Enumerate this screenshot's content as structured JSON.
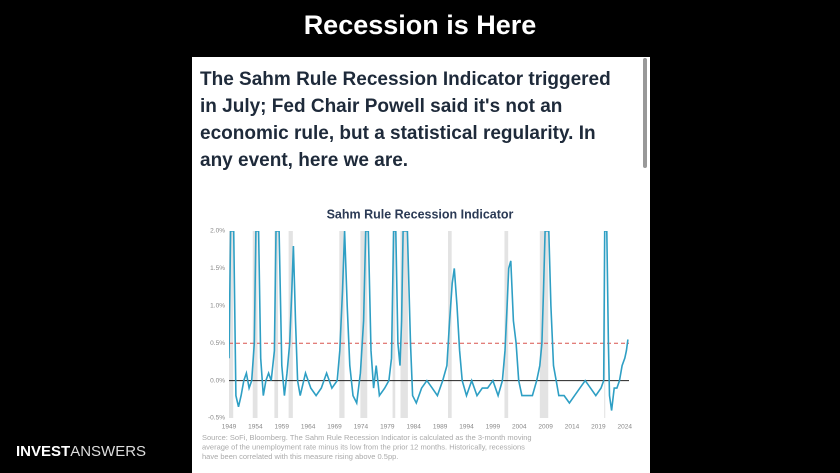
{
  "slide_title": "Recession is Here",
  "headline_lines": [
    "The Sahm Rule Recession Indicator triggered",
    "in July; Fed Chair Powell said it's not an",
    "economic rule, but a statistical regularity. In",
    "any event, here we are."
  ],
  "source_lines": [
    "Source: SoFi, Bloomberg. The Sahm Rule Recession Indicator is calculated as the 3-month moving",
    "average of the unemployment rate minus its low from the prior 12 months. Historically, recessions",
    "have been correlated with this measure rising above 0.5pp."
  ],
  "brand": {
    "bold": "INVEST",
    "light": "ANSWERS"
  },
  "chart_data": {
    "type": "line",
    "title": "Sahm Rule Recession Indicator",
    "x": [
      1949.0,
      1949.3,
      1949.9,
      1950.3,
      1950.8,
      1951.3,
      1951.8,
      1952.3,
      1952.8,
      1953.3,
      1953.8,
      1954.1,
      1954.6,
      1955.0,
      1955.5,
      1956.0,
      1956.5,
      1957.0,
      1957.6,
      1957.9,
      1958.5,
      1959.0,
      1959.5,
      1960.0,
      1960.5,
      1960.9,
      1961.2,
      1961.6,
      1962.0,
      1962.5,
      1963.5,
      1964.5,
      1965.5,
      1966.5,
      1967.5,
      1968.5,
      1969.5,
      1970.0,
      1970.5,
      1970.9,
      1971.4,
      1971.9,
      1972.5,
      1973.2,
      1973.9,
      1974.5,
      1974.9,
      1975.4,
      1975.9,
      1976.4,
      1976.9,
      1977.5,
      1978.5,
      1979.3,
      1979.8,
      1980.2,
      1980.6,
      1981.0,
      1981.4,
      1981.7,
      1982.0,
      1982.8,
      1983.4,
      1983.8,
      1984.5,
      1985.5,
      1986.5,
      1987.5,
      1988.5,
      1989.5,
      1990.3,
      1990.8,
      1991.3,
      1991.7,
      1992.2,
      1992.7,
      1993.2,
      1994.0,
      1995.0,
      1996.0,
      1997.0,
      1998.0,
      1999.0,
      2000.0,
      2000.8,
      2001.3,
      2001.7,
      2002.0,
      2002.4,
      2002.9,
      2003.4,
      2003.9,
      2004.5,
      2005.5,
      2006.5,
      2007.3,
      2007.9,
      2008.3,
      2008.6,
      2008.9,
      2009.6,
      2010.0,
      2010.5,
      2011.0,
      2011.5,
      2012.5,
      2013.5,
      2014.5,
      2015.5,
      2016.5,
      2017.5,
      2018.5,
      2019.5,
      2020.0,
      2020.2,
      2020.6,
      2020.9,
      2021.1,
      2021.5,
      2022.0,
      2022.5,
      2023.0,
      2023.5,
      2024.0,
      2024.3,
      2024.6
    ],
    "series": [
      {
        "name": "Sahm Rule Recession Indicator",
        "color": "#2e9fc4",
        "values": [
          0.3,
          2.0,
          2.0,
          -0.2,
          -0.35,
          -0.2,
          0.0,
          0.1,
          -0.1,
          0.0,
          0.5,
          2.0,
          2.0,
          0.3,
          -0.2,
          0.0,
          0.1,
          0.0,
          0.4,
          2.0,
          2.0,
          0.2,
          -0.2,
          0.1,
          0.5,
          1.2,
          1.8,
          0.8,
          0.0,
          -0.2,
          0.1,
          -0.1,
          -0.2,
          -0.1,
          0.1,
          -0.1,
          0.0,
          0.4,
          1.2,
          2.0,
          1.0,
          0.2,
          -0.2,
          -0.3,
          0.1,
          0.8,
          2.0,
          2.0,
          0.4,
          -0.1,
          0.2,
          -0.2,
          -0.1,
          0.0,
          0.3,
          2.0,
          2.0,
          0.5,
          0.2,
          0.8,
          2.0,
          2.0,
          0.5,
          -0.2,
          -0.3,
          -0.1,
          0.0,
          -0.1,
          -0.2,
          0.0,
          0.2,
          0.8,
          1.3,
          1.5,
          1.0,
          0.4,
          0.0,
          -0.2,
          0.0,
          -0.2,
          -0.1,
          -0.1,
          0.0,
          -0.2,
          0.0,
          0.4,
          1.0,
          1.5,
          1.6,
          0.8,
          0.5,
          0.0,
          -0.2,
          -0.2,
          -0.2,
          0.0,
          0.2,
          0.5,
          1.2,
          2.0,
          2.0,
          1.0,
          0.2,
          0.0,
          -0.2,
          -0.2,
          -0.3,
          -0.2,
          -0.1,
          0.0,
          -0.1,
          -0.2,
          -0.1,
          0.0,
          2.0,
          2.0,
          0.5,
          -0.2,
          -0.4,
          -0.1,
          -0.1,
          0.0,
          0.2,
          0.3,
          0.4,
          0.55
        ]
      }
    ],
    "recessions": [
      [
        1948.9,
        1949.8
      ],
      [
        1953.5,
        1954.4
      ],
      [
        1957.6,
        1958.3
      ],
      [
        1960.3,
        1961.1
      ],
      [
        1969.9,
        1970.9
      ],
      [
        1973.9,
        1975.2
      ],
      [
        1980.0,
        1980.5
      ],
      [
        1981.5,
        1982.9
      ],
      [
        1990.5,
        1991.2
      ],
      [
        2001.2,
        2001.9
      ],
      [
        2007.9,
        2009.5
      ],
      [
        2020.1,
        2020.3
      ]
    ],
    "recession_color": "#e3e3e3",
    "threshold": 0.5,
    "threshold_color": "#d9534f",
    "xlim": [
      1949,
      2024.8
    ],
    "ylim": [
      -0.5,
      2.0
    ],
    "xticks": [
      1949,
      1954,
      1959,
      1964,
      1969,
      1974,
      1979,
      1984,
      1989,
      1994,
      1999,
      2004,
      2009,
      2014,
      2019,
      2024
    ],
    "yticks": [
      {
        "value": -0.5,
        "label": "-0.5%"
      },
      {
        "value": 0,
        "label": "0.0%"
      },
      {
        "value": 0.5,
        "label": "0.5%"
      },
      {
        "value": 1,
        "label": "1.0%"
      },
      {
        "value": 1.5,
        "label": "1.5%"
      },
      {
        "value": 2,
        "label": "2.0%"
      }
    ]
  }
}
